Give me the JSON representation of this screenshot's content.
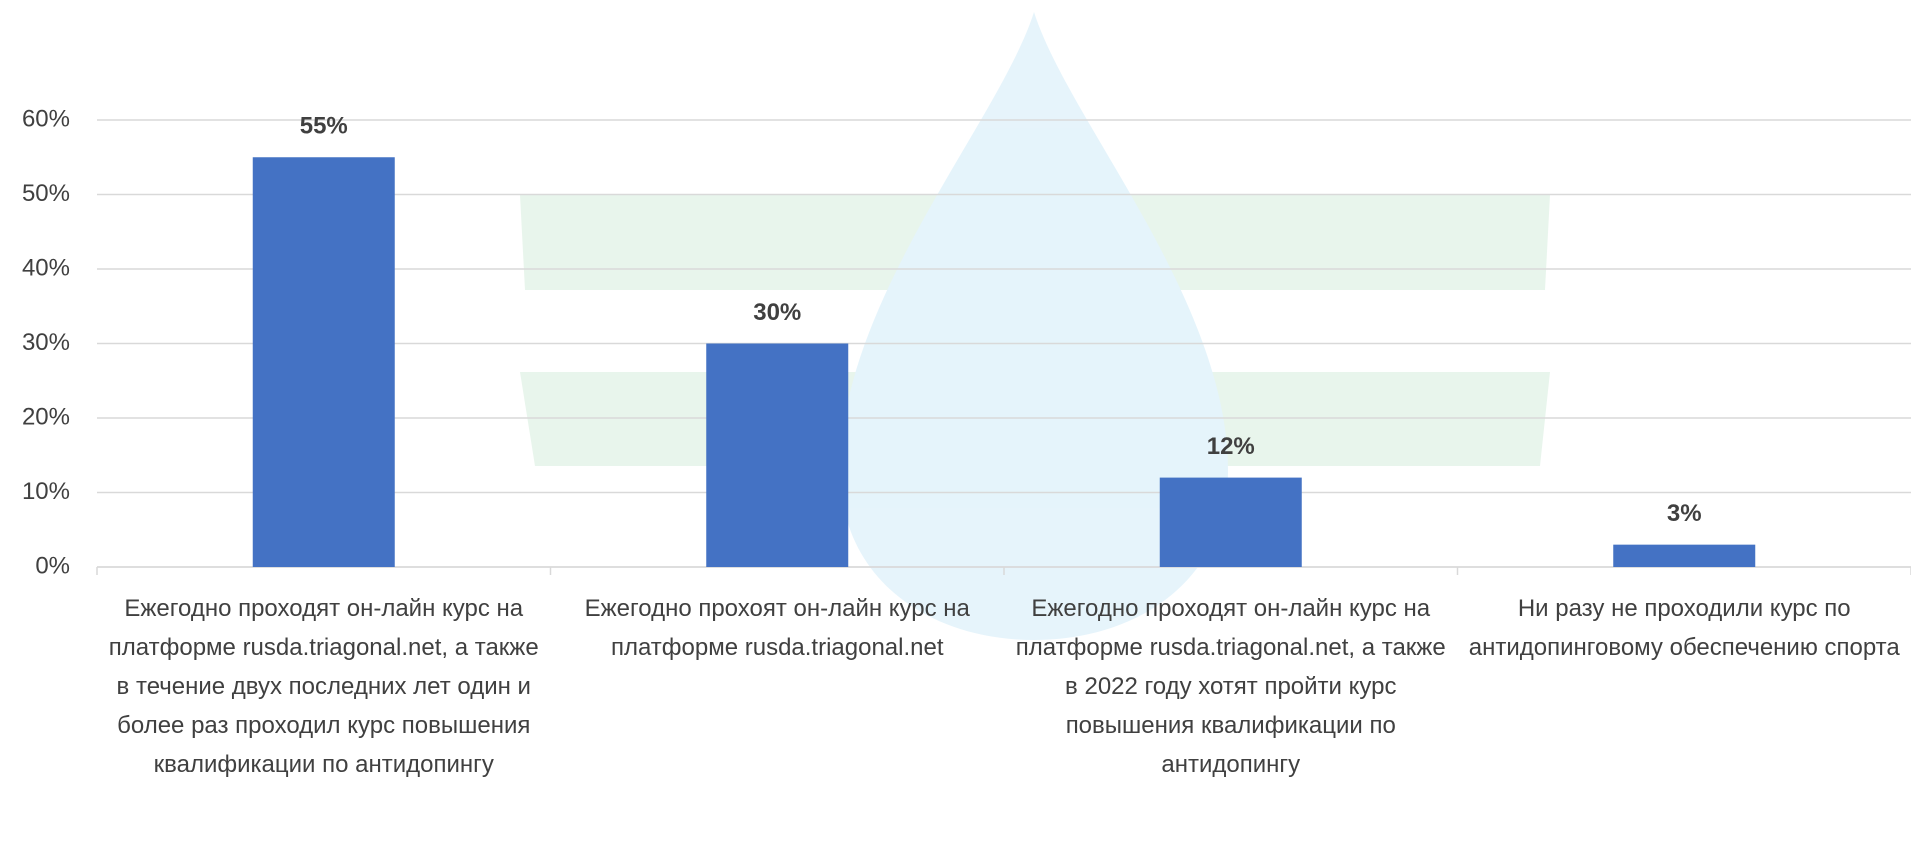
{
  "chart_data": {
    "type": "bar",
    "categories": [
      "Ежегодно проходят он-лайн курс на платформе rusda.triagonal.net, а также в течение двух последних лет один и более раз проходил курс повышения квалификации по антидопингу",
      "Ежегодно прохоят он-лайн курс на платформе rusda.triagonal.net",
      "Ежегодно проходят он-лайн курс на платформе rusda.triagonal.net, а также в 2022 году хотят пройти курс повышения квалификации по антидопингу",
      "Ни разу не проходили курс по антидопинговому обеспечению спорта"
    ],
    "values": [
      55,
      30,
      12,
      3
    ],
    "value_labels": [
      "55%",
      "30%",
      "12%",
      "3%"
    ],
    "color": "#4472c4",
    "ylim": [
      0,
      60
    ],
    "yticks": [
      {
        "value": 0,
        "label": "0%"
      },
      {
        "value": 10,
        "label": "10%"
      },
      {
        "value": 20,
        "label": "20%"
      },
      {
        "value": 30,
        "label": "30%"
      },
      {
        "value": 40,
        "label": "40%"
      },
      {
        "value": 50,
        "label": "50%"
      },
      {
        "value": 60,
        "label": "60%"
      }
    ],
    "grid": true
  }
}
